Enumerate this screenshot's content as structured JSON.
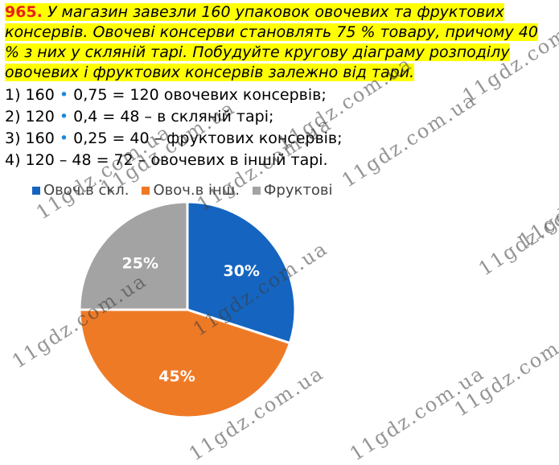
{
  "task": {
    "number": "965.",
    "text": "У магазин завезли 160 упаковок овочевих та фруктових консервів. Овочеві консерви становлять 75 % товару, причому 40 % з них у скляній тарі. Побудуйте кругову діаграму розподілу овочевих і фруктових консервів залежно від тари."
  },
  "steps": [
    {
      "pre": "1) 160",
      "post": "0,75 = 120 овочевих консервів;"
    },
    {
      "pre": "2) 120",
      "post": "0,4 = 48 – в скляній тарі;"
    },
    {
      "pre": "3) 160",
      "post": "0,25 = 40 – фруктових консервів;"
    },
    {
      "pre": "4) 120 – 48 = 72 – овочевих в іншій тарі.",
      "post": ""
    }
  ],
  "chart_data": {
    "type": "pie",
    "categories": [
      "Овоч.в скл.",
      "Овоч.в інш.",
      "Фруктові"
    ],
    "values": [
      30,
      45,
      25
    ],
    "labels": [
      "30%",
      "45%",
      "25%"
    ],
    "colors": [
      "#1565c0",
      "#ef7a26",
      "#a3a3a3"
    ],
    "legend": "top-left"
  },
  "watermark": "11gdz.com.ua"
}
